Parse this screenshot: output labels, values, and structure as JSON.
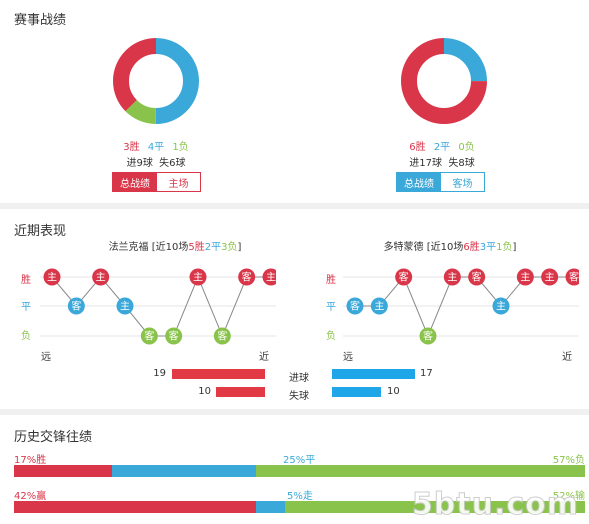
{
  "colors": {
    "win": "#d9364a",
    "draw": "#3aa8d9",
    "loss": "#8ac34b",
    "bar_red": "#e23a45",
    "bar_blue": "#1fa6e8"
  },
  "record": {
    "title": "赛事战绩",
    "home": {
      "wins": "3胜",
      "draws": "4平",
      "losses": "1负",
      "goals": "进9球  失6球",
      "tab_all": "总战绩",
      "tab_venue": "主场",
      "pie": [
        3,
        4,
        1
      ]
    },
    "away": {
      "wins": "6胜",
      "draws": "2平",
      "losses": "0负",
      "goals": "进17球  失8球",
      "tab_all": "总战绩",
      "tab_venue": "客场",
      "pie": [
        6,
        2,
        0
      ]
    }
  },
  "recent": {
    "title": "近期表现",
    "row_labels": {
      "win": "胜",
      "draw": "平",
      "loss": "负"
    },
    "axis": {
      "far": "远",
      "near": "近"
    },
    "home": {
      "team": "法兰克福",
      "summary_pre": "[近10场",
      "summary_w": "5胜",
      "summary_d": "2平",
      "summary_l": "3负",
      "summary_post": "]",
      "results": [
        "W",
        "D",
        "W",
        "D",
        "L",
        "L",
        "W",
        "L",
        "W",
        "W"
      ],
      "venues": [
        "主",
        "客",
        "主",
        "主",
        "客",
        "客",
        "主",
        "客",
        "客",
        "主"
      ]
    },
    "away": {
      "team": "多特蒙德",
      "summary_pre": "[近10场",
      "summary_w": "6胜",
      "summary_d": "3平",
      "summary_l": "1负",
      "summary_post": "]",
      "results": [
        "D",
        "D",
        "W",
        "L",
        "W",
        "W",
        "D",
        "W",
        "W",
        "W"
      ],
      "venues": [
        "客",
        "主",
        "客",
        "客",
        "主",
        "客",
        "主",
        "主",
        "主",
        "客"
      ]
    },
    "goals_for": {
      "label": "进球",
      "home": 19,
      "away": 17
    },
    "goals_against": {
      "label": "失球",
      "home": 10,
      "away": 10
    }
  },
  "history": {
    "title": "历史交锋往绩",
    "row1": {
      "left": "17%胜",
      "mid": "25%平",
      "right": "57%负",
      "values": [
        17,
        25,
        57
      ]
    },
    "row2": {
      "left": "42%赢",
      "mid": "5%走",
      "right": "52%输",
      "values": [
        42,
        5,
        52
      ]
    }
  },
  "watermark": "5btu.com"
}
